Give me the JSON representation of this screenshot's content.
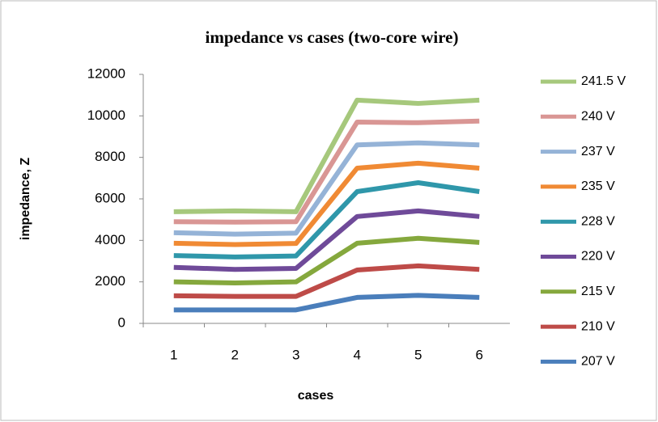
{
  "chart_data": {
    "type": "line",
    "title": "impedance vs cases (two-core wire)",
    "x_label": "cases",
    "y_label": "impedance, Z",
    "categories": [
      "1",
      "2",
      "3",
      "4",
      "5",
      "6"
    ],
    "ylim": [
      0,
      12000
    ],
    "yticks": [
      0,
      2000,
      4000,
      6000,
      8000,
      10000,
      12000
    ],
    "grid": false,
    "legend": "right",
    "series": [
      {
        "name": "241.5 V",
        "color": "#a6c87c",
        "values": [
          5380,
          5420,
          5380,
          10760,
          10600,
          10760
        ]
      },
      {
        "name": "240 V",
        "color": "#d99694",
        "values": [
          4900,
          4880,
          4900,
          9700,
          9670,
          9750
        ]
      },
      {
        "name": "237 V",
        "color": "#95b3d7",
        "values": [
          4370,
          4300,
          4350,
          8600,
          8700,
          8600
        ]
      },
      {
        "name": "235 V",
        "color": "#f08a34",
        "values": [
          3860,
          3800,
          3850,
          7480,
          7720,
          7480
        ]
      },
      {
        "name": "228 V",
        "color": "#2f97aa",
        "values": [
          3270,
          3200,
          3250,
          6350,
          6780,
          6350
        ]
      },
      {
        "name": "220 V",
        "color": "#6f4a99",
        "values": [
          2700,
          2600,
          2650,
          5150,
          5420,
          5150
        ]
      },
      {
        "name": "215 V",
        "color": "#85a83d",
        "values": [
          2000,
          1950,
          2000,
          3860,
          4100,
          3900
        ]
      },
      {
        "name": "210 V",
        "color": "#be4b48",
        "values": [
          1330,
          1300,
          1300,
          2570,
          2770,
          2600
        ]
      },
      {
        "name": "207 V",
        "color": "#4a7ebb",
        "values": [
          650,
          650,
          650,
          1250,
          1350,
          1250
        ]
      }
    ]
  }
}
